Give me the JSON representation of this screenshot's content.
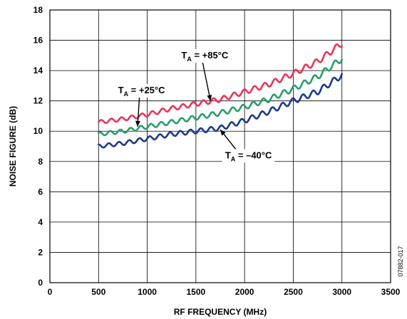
{
  "chart_data": {
    "type": "line",
    "title": "",
    "xlabel": "RF FREQUENCY (MHz)",
    "ylabel": "NOISE FIGURE (dB)",
    "xlim": [
      0,
      3500
    ],
    "ylim": [
      0,
      18
    ],
    "xticks": [
      0,
      500,
      1000,
      1500,
      2000,
      2500,
      3000,
      3500
    ],
    "yticks": [
      0,
      2,
      4,
      6,
      8,
      10,
      12,
      14,
      16,
      18
    ],
    "grid": true,
    "series": [
      {
        "name": "+85°C",
        "color": "#e8345a",
        "x": [
          500,
          750,
          1000,
          1250,
          1500,
          1750,
          2000,
          2250,
          2500,
          2750,
          3000
        ],
        "y": [
          10.6,
          10.8,
          11.1,
          11.5,
          11.8,
          12.1,
          12.6,
          13.1,
          13.8,
          14.6,
          15.8
        ]
      },
      {
        "name": "+25°C",
        "color": "#2a9d6a",
        "x": [
          500,
          750,
          1000,
          1250,
          1500,
          1750,
          2000,
          2250,
          2500,
          2750,
          3000
        ],
        "y": [
          9.8,
          10.0,
          10.3,
          10.6,
          10.9,
          11.2,
          11.6,
          12.1,
          12.8,
          13.6,
          14.8
        ]
      },
      {
        "name": "-40°C",
        "color": "#1c3a8a",
        "x": [
          500,
          750,
          1000,
          1250,
          1500,
          1750,
          2000,
          2250,
          2500,
          2750,
          3000
        ],
        "y": [
          9.0,
          9.2,
          9.5,
          9.8,
          10.0,
          10.2,
          10.7,
          11.3,
          12.0,
          12.6,
          13.7
        ]
      }
    ],
    "annotations": [
      {
        "series": "+85°C",
        "prefix": "T",
        "sub": "A",
        "text": " = +85°C",
        "label_x": 1350,
        "label_y": 14.8,
        "point_x": 1650,
        "point_y": 12.0
      },
      {
        "series": "+25°C",
        "prefix": "T",
        "sub": "A",
        "text": " = +25°C",
        "label_x": 700,
        "label_y": 12.5,
        "point_x": 900,
        "point_y": 10.3
      },
      {
        "series": "-40°C",
        "prefix": "T",
        "sub": "A",
        "text": " = –40°C",
        "label_x": 1800,
        "label_y": 8.2,
        "point_x": 1750,
        "point_y": 10.1
      }
    ]
  },
  "figure_id": "07882-017"
}
